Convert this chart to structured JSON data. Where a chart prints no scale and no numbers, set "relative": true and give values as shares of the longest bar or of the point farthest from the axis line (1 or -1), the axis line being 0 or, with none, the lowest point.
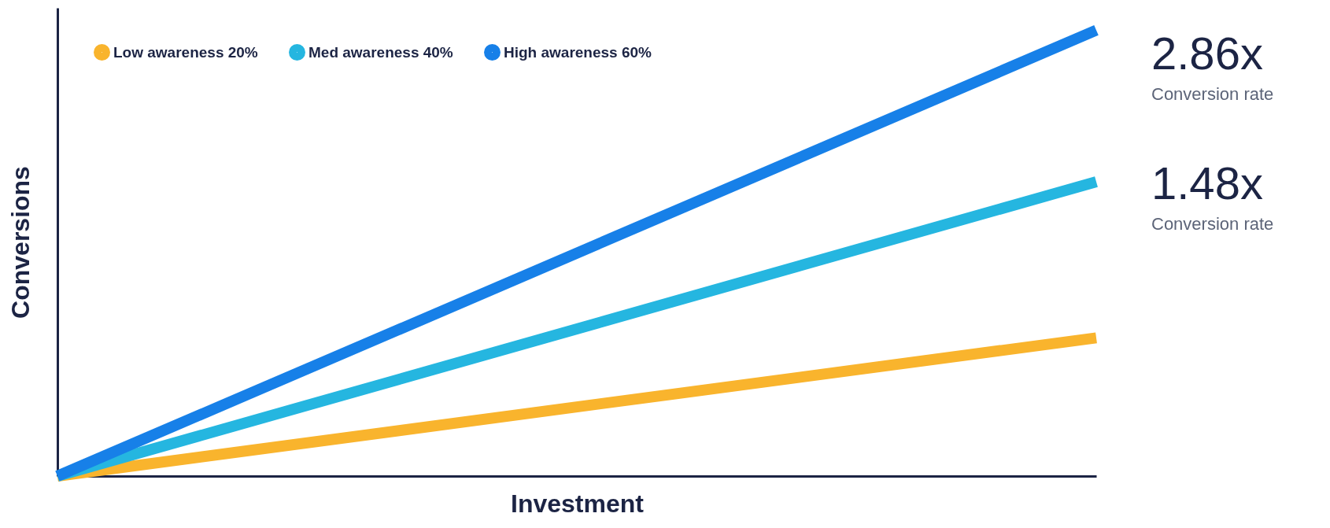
{
  "chart_data": {
    "type": "line",
    "relative": true,
    "xlabel": "Investment",
    "ylabel": "Conversions",
    "categories": [
      null,
      null
    ],
    "series": [
      {
        "name": "Low awareness 20%",
        "color": "#f9b42d",
        "values": [
          0,
          0.31
        ]
      },
      {
        "name": "Med awareness 40%",
        "color": "#25b6e0",
        "values": [
          0,
          0.66
        ]
      },
      {
        "name": "High awareness 60%",
        "color": "#1780e8",
        "values": [
          0,
          1
        ]
      }
    ],
    "annotations": [
      "2.86x",
      "Conversion rate",
      "1.48x",
      "Conversion rate"
    ],
    "legend": "top left",
    "grid": false,
    "marker": "none",
    "line_style": "solid"
  }
}
